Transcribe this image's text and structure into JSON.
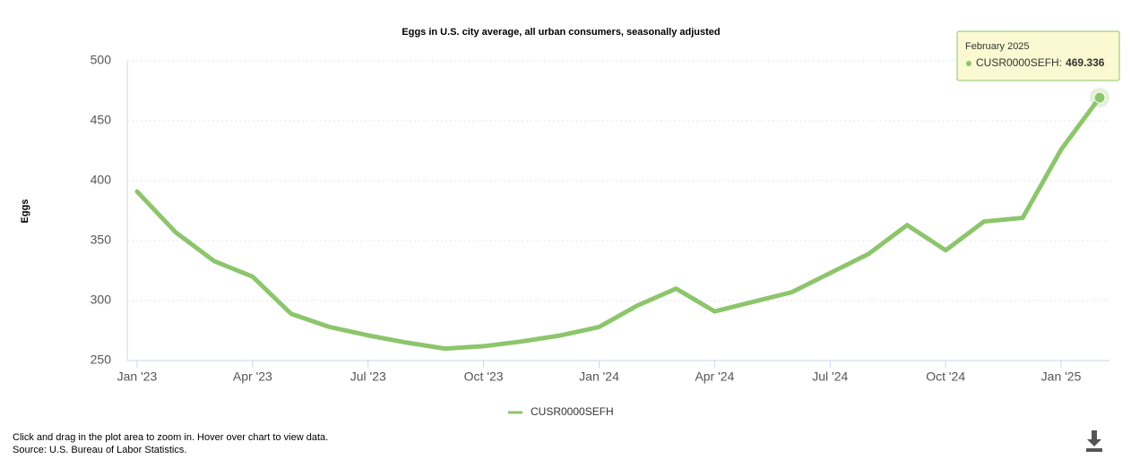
{
  "chart_data": {
    "type": "line",
    "title": "Eggs in U.S. city average, all urban consumers, seasonally adjusted",
    "y_label": "Eggs",
    "categories": [
      "Jan '23",
      null,
      null,
      "Apr '23",
      null,
      null,
      "Jul '23",
      null,
      null,
      "Oct '23",
      null,
      null,
      "Jan '24",
      null,
      null,
      "Apr '24",
      null,
      null,
      "Jul '24",
      null,
      null,
      "Oct '24",
      null,
      null,
      "Jan '25",
      null
    ],
    "series": [
      {
        "name": "CUSR0000SEFH",
        "color": "#8dc56c",
        "values": [
          391,
          357,
          333,
          320,
          289,
          278,
          271,
          265,
          260,
          262,
          266,
          271,
          278,
          296,
          310,
          291,
          299,
          307,
          323,
          339,
          363,
          342,
          366,
          369,
          426,
          469.336
        ]
      }
    ],
    "ylim": [
      250,
      500
    ],
    "yticks": [
      250,
      300,
      350,
      400,
      450,
      500
    ],
    "grid": true,
    "tooltip": {
      "title": "February 2025",
      "series_label": "CUSR0000SEFH:"
    },
    "notes": [
      "Click and drag in the plot area to zoom in. Hover over chart to view data.",
      "Source: U.S. Bureau of Labor Statistics."
    ]
  }
}
